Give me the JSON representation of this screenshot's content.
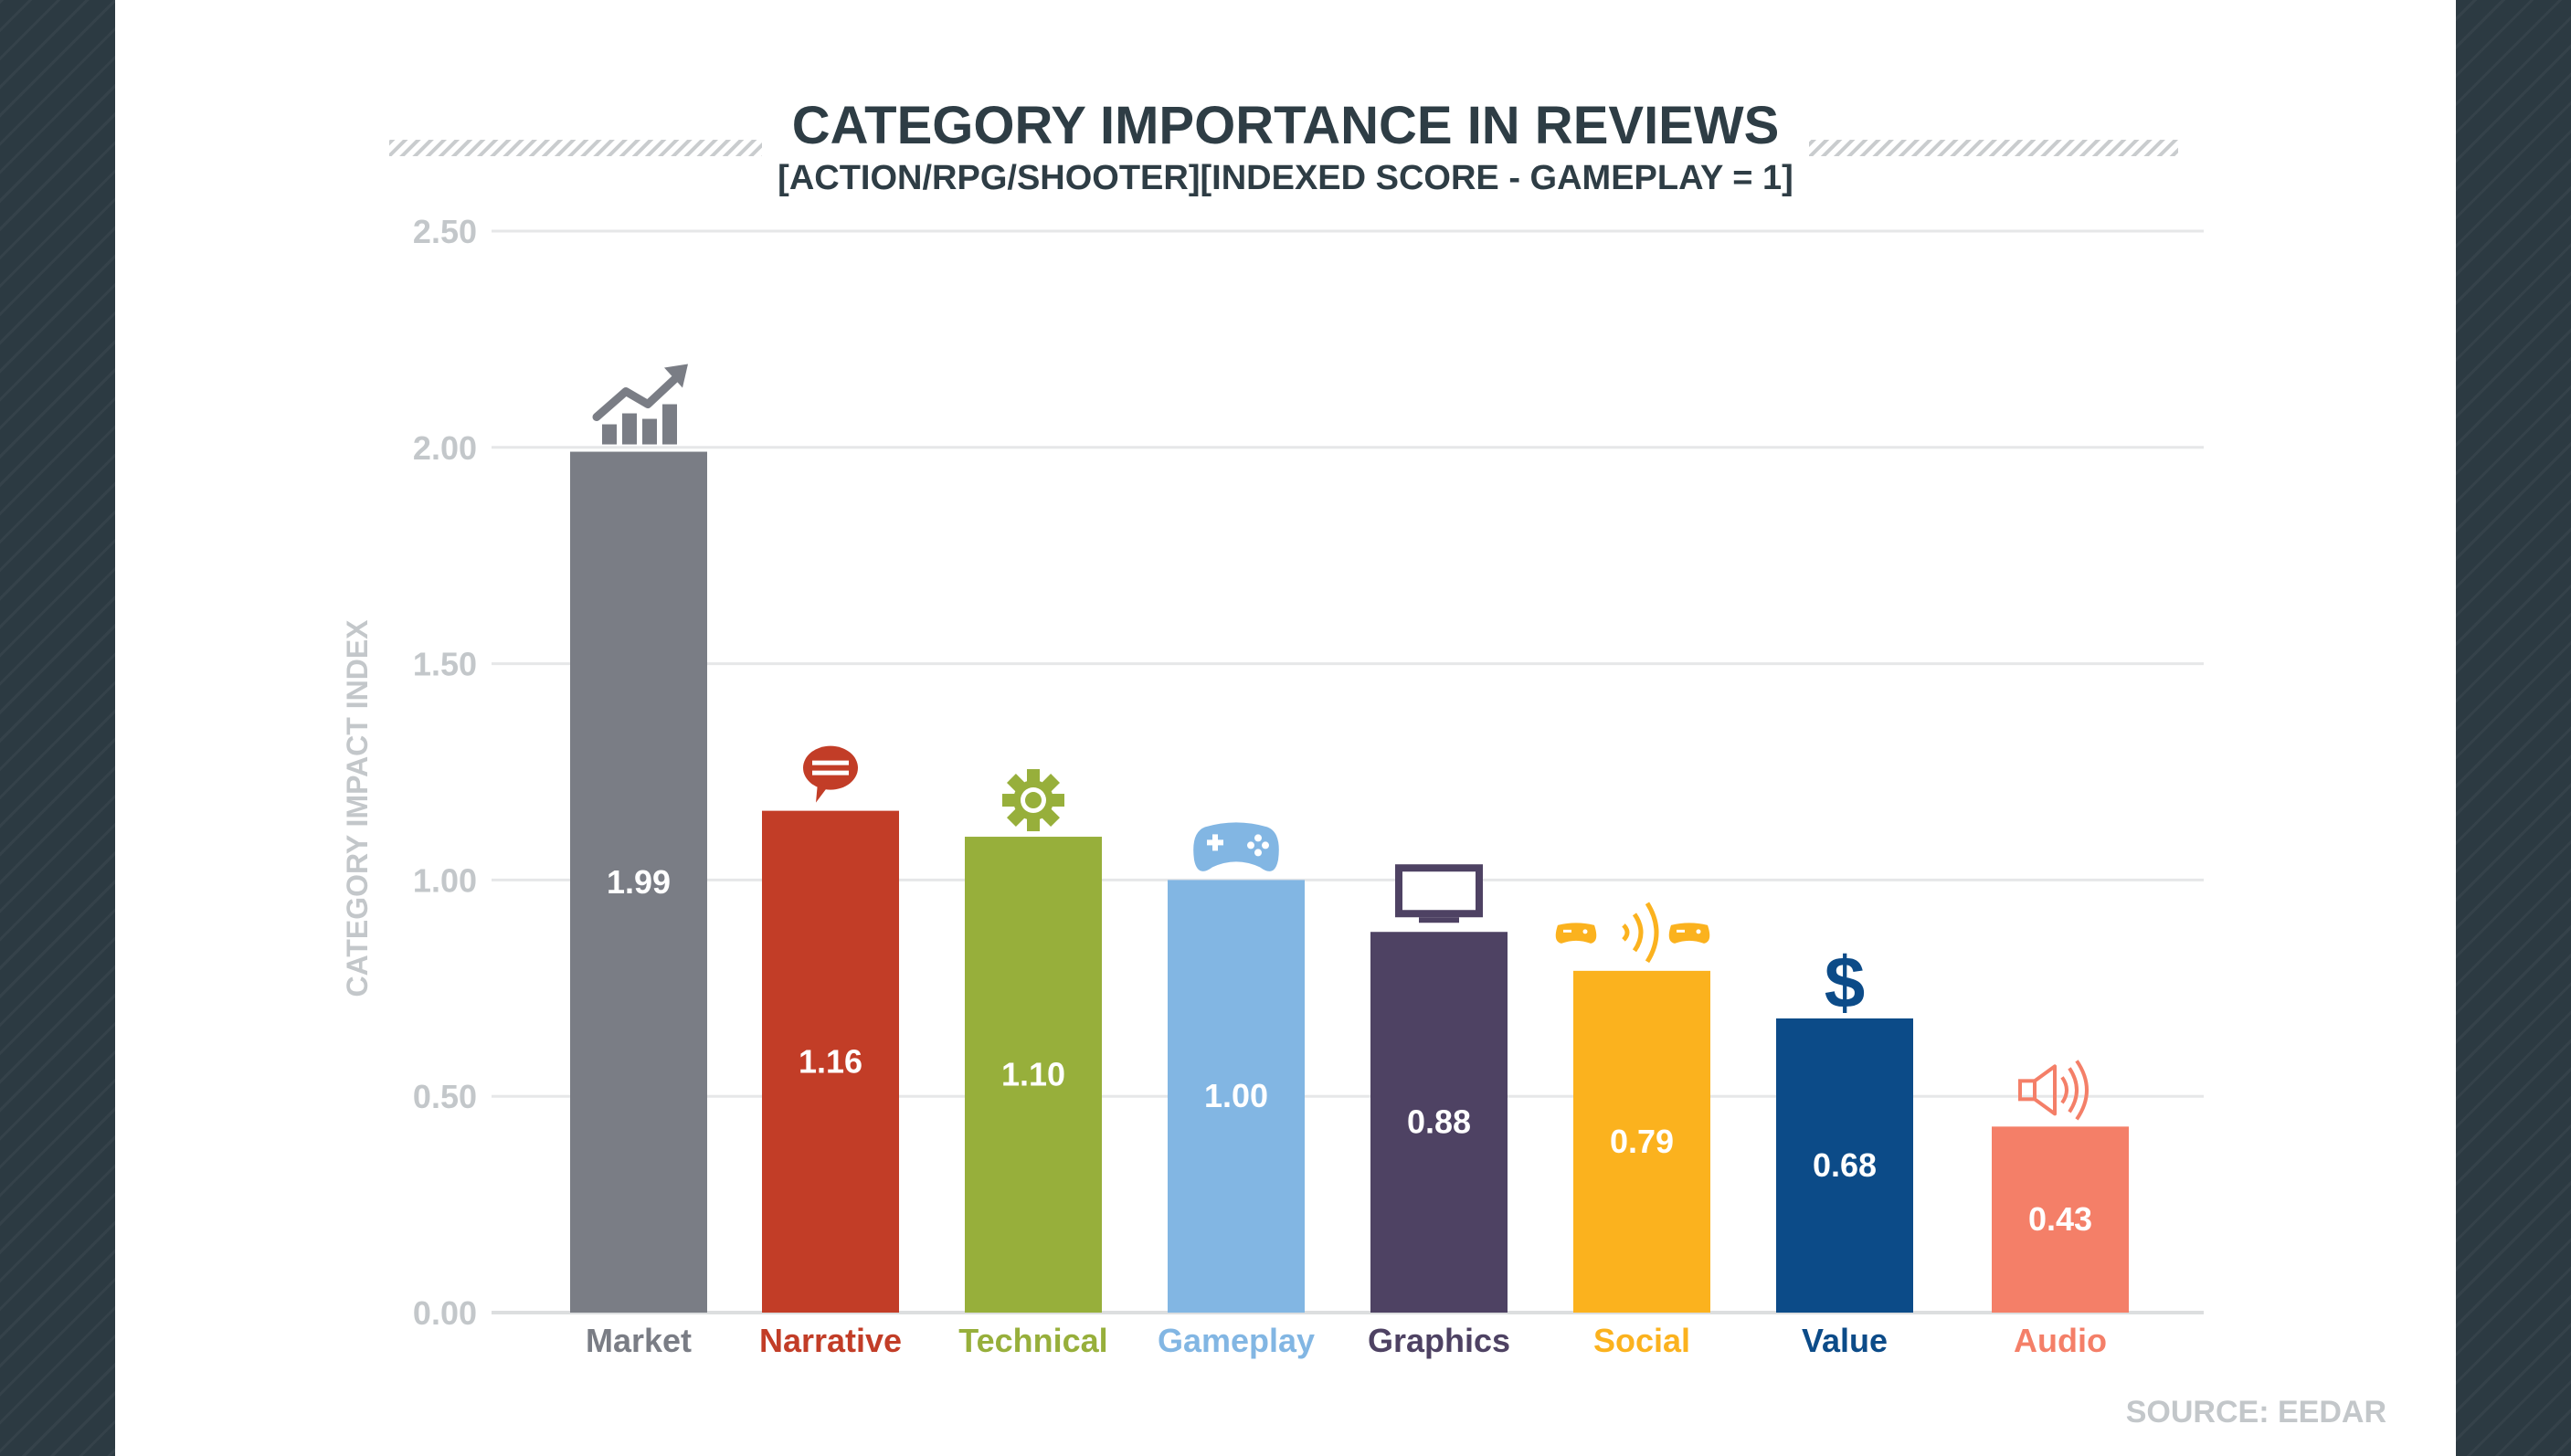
{
  "chart_data": {
    "type": "bar",
    "title": "CATEGORY IMPORTANCE IN REVIEWS",
    "subtitle": "[ACTION/RPG/SHOOTER][INDEXED SCORE - GAMEPLAY = 1]",
    "xlabel": "",
    "ylabel": "CATEGORY IMPACT INDEX",
    "ylim": [
      0,
      2.5
    ],
    "yticks": [
      "0.00",
      "0.50",
      "1.00",
      "1.50",
      "2.00",
      "2.50"
    ],
    "grid": true,
    "categories": [
      "Market",
      "Narrative",
      "Technical",
      "Gameplay",
      "Graphics",
      "Social",
      "Value",
      "Audio"
    ],
    "values": [
      1.99,
      1.16,
      1.1,
      1.0,
      0.88,
      0.79,
      0.68,
      0.43
    ],
    "value_labels": [
      "1.99",
      "1.16",
      "1.10",
      "1.00",
      "0.88",
      "0.79",
      "0.68",
      "0.43"
    ],
    "colors": [
      "#7a7d85",
      "#c23d27",
      "#97af3b",
      "#82b6e3",
      "#4e4263",
      "#fbb21e",
      "#0c4b88",
      "#f47f68"
    ],
    "icons": [
      "trend-chart-icon",
      "speech-bubble-icon",
      "gear-icon",
      "gamepad-icon",
      "monitor-icon",
      "multiplayer-icon",
      "dollar-icon",
      "speaker-icon"
    ],
    "source": "SOURCE: EEDAR"
  }
}
